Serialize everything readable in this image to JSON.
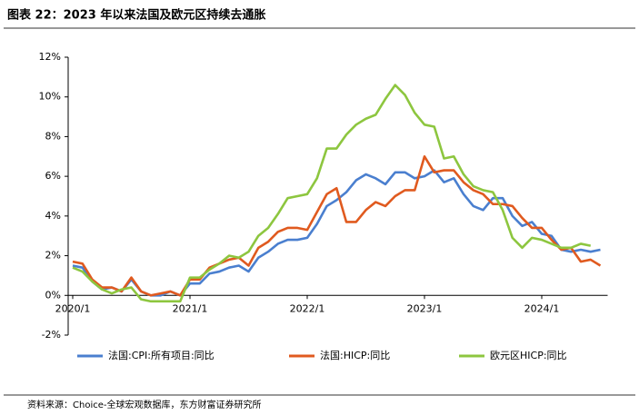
{
  "chart_data": {
    "type": "line",
    "title": "图表 22：2023 年以来法国及欧元区持续去通胀",
    "source": "资料来源：Choice-全球宏观数据库，东方财富证券研究所",
    "categories": [
      "2020/1",
      null,
      null,
      null,
      null,
      null,
      null,
      null,
      null,
      null,
      null,
      null,
      "2021/1",
      null,
      null,
      null,
      null,
      null,
      null,
      null,
      null,
      null,
      null,
      null,
      "2022/1",
      null,
      null,
      null,
      null,
      null,
      null,
      null,
      null,
      null,
      null,
      null,
      "2023/1",
      null,
      null,
      null,
      null,
      null,
      null,
      null,
      null,
      null,
      null,
      null,
      "2024/1",
      null,
      null,
      null,
      null,
      null,
      null
    ],
    "ylim": [
      -2,
      12
    ],
    "yticks": [
      {
        "value": -2,
        "label": "-2%"
      },
      {
        "value": 0,
        "label": "0%"
      },
      {
        "value": 2,
        "label": "2%"
      },
      {
        "value": 4,
        "label": "4%"
      },
      {
        "value": 6,
        "label": "6%"
      },
      {
        "value": 8,
        "label": "8%"
      },
      {
        "value": 10,
        "label": "10%"
      },
      {
        "value": 12,
        "label": "12%"
      }
    ],
    "grid": false,
    "legend": "bottom",
    "series": [
      {
        "name": "法国:CPI:所有项目:同比",
        "color": "#4a7fcf",
        "values": [
          1.5,
          1.4,
          0.7,
          0.3,
          0.4,
          0.2,
          0.8,
          0.2,
          0.0,
          0.0,
          0.2,
          0.0,
          0.6,
          0.6,
          1.1,
          1.2,
          1.4,
          1.5,
          1.2,
          1.9,
          2.2,
          2.6,
          2.8,
          2.8,
          2.9,
          3.6,
          4.5,
          4.8,
          5.2,
          5.8,
          6.1,
          5.9,
          5.6,
          6.2,
          6.2,
          5.9,
          6.0,
          6.3,
          5.7,
          5.9,
          5.1,
          4.5,
          4.3,
          4.9,
          4.9,
          4.0,
          3.5,
          3.7,
          3.1,
          3.0,
          2.3,
          2.2,
          2.3,
          2.2,
          2.3
        ]
      },
      {
        "name": "法国:HICP:同比",
        "color": "#e05a1f",
        "values": [
          1.7,
          1.6,
          0.8,
          0.4,
          0.4,
          0.2,
          0.9,
          0.2,
          0.0,
          0.1,
          0.2,
          0.0,
          0.8,
          0.8,
          1.4,
          1.6,
          1.8,
          1.9,
          1.5,
          2.4,
          2.7,
          3.2,
          3.4,
          3.4,
          3.3,
          4.2,
          5.1,
          5.4,
          3.7,
          3.7,
          4.3,
          4.7,
          4.5,
          5.0,
          5.3,
          5.3,
          7.0,
          6.2,
          6.3,
          6.3,
          5.7,
          5.3,
          5.1,
          4.6,
          4.6,
          4.5,
          3.9,
          3.4,
          3.4,
          2.8,
          2.3,
          2.4,
          1.7,
          1.8,
          1.5
        ]
      },
      {
        "name": "欧元区HICP:同比",
        "color": "#8dc63f",
        "values": [
          1.4,
          1.2,
          0.7,
          0.3,
          0.1,
          0.3,
          0.4,
          -0.2,
          -0.3,
          -0.3,
          -0.3,
          -0.3,
          0.9,
          0.9,
          1.3,
          1.6,
          2.0,
          1.9,
          2.2,
          3.0,
          3.4,
          4.1,
          4.9,
          5.0,
          5.1,
          5.9,
          7.4,
          7.4,
          8.1,
          8.6,
          8.9,
          9.1,
          9.9,
          10.6,
          10.1,
          9.2,
          8.6,
          8.5,
          6.9,
          7.0,
          6.1,
          5.5,
          5.3,
          5.2,
          4.3,
          2.9,
          2.4,
          2.9,
          2.8,
          2.6,
          2.4,
          2.4,
          2.6,
          2.5,
          null
        ]
      }
    ]
  }
}
